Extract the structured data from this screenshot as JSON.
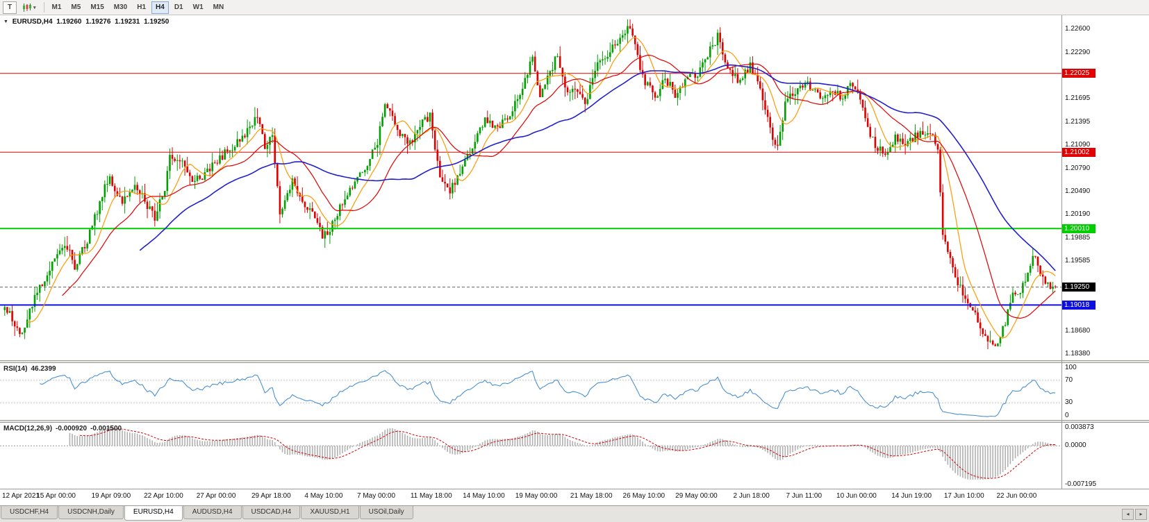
{
  "icons": {
    "collapse": "▼",
    "dropdown": "▾",
    "scroll_left": "◂",
    "scroll_right": "▸"
  },
  "toolbar": {
    "tool_button": "T",
    "timeframes": [
      "M1",
      "M5",
      "M15",
      "M30",
      "H1",
      "H4",
      "D1",
      "W1",
      "MN"
    ],
    "active_timeframe": "H4"
  },
  "chart": {
    "title": "EURUSD,H4",
    "open": "1.19260",
    "high": "1.19276",
    "low": "1.19231",
    "close": "1.19250"
  },
  "price_axis": {
    "labels": [
      "1.22600",
      "1.22290",
      "1.21995",
      "1.21695",
      "1.21395",
      "1.21090",
      "1.20790",
      "1.20490",
      "1.20190",
      "1.19885",
      "1.19585",
      "1.18680",
      "1.18380"
    ]
  },
  "hlines": [
    {
      "text": "1.22025",
      "price": 1.22025,
      "color": "#e00000",
      "width": 1
    },
    {
      "text": "1.21002",
      "price": 1.21002,
      "color": "#e00000",
      "width": 1
    },
    {
      "text": "1.20010",
      "price": 1.2001,
      "color": "#00ce00",
      "width": 2
    },
    {
      "text": "1.19018",
      "price": 1.19018,
      "color": "#0e0edf",
      "width": 2
    }
  ],
  "current_price": {
    "text": "1.19250",
    "price": 1.1925,
    "bg": "#000000"
  },
  "rsi": {
    "label": "RSI(14)",
    "value": "46.2399",
    "color": "#4a90d2",
    "scale": [
      "100",
      "70",
      "30",
      "0"
    ],
    "levels": [
      70,
      30
    ]
  },
  "macd": {
    "label": "MACD(12,26,9)",
    "value_main": "-0.000920",
    "value_signal": "-0.001500",
    "main_color": "#b0b0b0",
    "signal_color": "#d40000",
    "scale": [
      "0.003873",
      "0.0000",
      "-0.007195"
    ]
  },
  "time_axis": {
    "labels": [
      {
        "text": "12 Apr 2021",
        "i": 0
      },
      {
        "text": "15 Apr 00:00",
        "i": 21
      },
      {
        "text": "19 Apr 09:00",
        "i": 43
      },
      {
        "text": "22 Apr 10:00",
        "i": 64
      },
      {
        "text": "27 Apr 00:00",
        "i": 85
      },
      {
        "text": "29 Apr 18:00",
        "i": 107
      },
      {
        "text": "4 May 10:00",
        "i": 128
      },
      {
        "text": "7 May 00:00",
        "i": 149
      },
      {
        "text": "11 May 18:00",
        "i": 171
      },
      {
        "text": "14 May 10:00",
        "i": 192
      },
      {
        "text": "19 May 00:00",
        "i": 213
      },
      {
        "text": "21 May 18:00",
        "i": 235
      },
      {
        "text": "26 May 10:00",
        "i": 256
      },
      {
        "text": "29 May 00:00",
        "i": 277
      },
      {
        "text": "2 Jun 18:00",
        "i": 299
      },
      {
        "text": "7 Jun 11:00",
        "i": 320
      },
      {
        "text": "10 Jun 00:00",
        "i": 341
      },
      {
        "text": "14 Jun 19:00",
        "i": 363
      },
      {
        "text": "17 Jun 10:00",
        "i": 384
      },
      {
        "text": "22 Jun 00:00",
        "i": 405
      }
    ]
  },
  "tabs": {
    "items": [
      "USDCHF,H4",
      "USDCNH,Daily",
      "EURUSD,H4",
      "AUDUSD,H4",
      "USDCAD,H4",
      "XAUUSD,H1",
      "USOil,Daily"
    ],
    "active": "EURUSD,H4"
  },
  "chart_data": {
    "type": "candlestick",
    "symbol": "EURUSD",
    "timeframe": "H4",
    "candle_count": 421,
    "price_top": 1.2278,
    "price_bottom": 1.183,
    "up_color": "#00a000",
    "down_color": "#e00000",
    "last_candle": {
      "open": 1.1926,
      "high": 1.19276,
      "low": 1.19231,
      "close": 1.1925
    },
    "price_path": [
      [
        0,
        1.1902
      ],
      [
        4,
        1.1876
      ],
      [
        7,
        1.1862
      ],
      [
        12,
        1.1912
      ],
      [
        18,
        1.1948
      ],
      [
        21,
        1.1968
      ],
      [
        25,
        1.1976
      ],
      [
        28,
        1.1952
      ],
      [
        33,
        1.1985
      ],
      [
        38,
        1.2035
      ],
      [
        42,
        1.2072
      ],
      [
        45,
        1.2042
      ],
      [
        47,
        1.2034
      ],
      [
        52,
        1.2062
      ],
      [
        56,
        1.2036
      ],
      [
        60,
        1.2016
      ],
      [
        64,
        1.2055
      ],
      [
        66,
        1.2097
      ],
      [
        72,
        1.2082
      ],
      [
        76,
        1.2062
      ],
      [
        80,
        1.2072
      ],
      [
        85,
        1.2089
      ],
      [
        90,
        1.2105
      ],
      [
        96,
        1.2123
      ],
      [
        101,
        1.2148
      ],
      [
        104,
        1.2108
      ],
      [
        107,
        1.2122
      ],
      [
        110,
        1.2022
      ],
      [
        115,
        1.2063
      ],
      [
        120,
        1.2032
      ],
      [
        124,
        1.2014
      ],
      [
        127,
        1.199
      ],
      [
        131,
        1.2006
      ],
      [
        136,
        1.2042
      ],
      [
        141,
        1.2064
      ],
      [
        146,
        1.2092
      ],
      [
        149,
        1.2112
      ],
      [
        152,
        1.2166
      ],
      [
        157,
        1.2129
      ],
      [
        162,
        1.2112
      ],
      [
        166,
        1.2136
      ],
      [
        170,
        1.2147
      ],
      [
        174,
        1.2066
      ],
      [
        178,
        1.2052
      ],
      [
        183,
        1.2079
      ],
      [
        188,
        1.2112
      ],
      [
        192,
        1.2143
      ],
      [
        197,
        1.2132
      ],
      [
        203,
        1.2155
      ],
      [
        208,
        1.2192
      ],
      [
        211,
        1.2223
      ],
      [
        214,
        1.2172
      ],
      [
        218,
        1.2202
      ],
      [
        221,
        1.2228
      ],
      [
        225,
        1.2176
      ],
      [
        228,
        1.2182
      ],
      [
        232,
        1.2162
      ],
      [
        237,
        1.2216
      ],
      [
        242,
        1.2232
      ],
      [
        247,
        1.2252
      ],
      [
        250,
        1.2262
      ],
      [
        253,
        1.2222
      ],
      [
        256,
        1.2192
      ],
      [
        260,
        1.2172
      ],
      [
        264,
        1.2196
      ],
      [
        268,
        1.2176
      ],
      [
        272,
        1.2193
      ],
      [
        277,
        1.2202
      ],
      [
        281,
        1.2226
      ],
      [
        285,
        1.225
      ],
      [
        288,
        1.2215
      ],
      [
        293,
        1.2192
      ],
      [
        298,
        1.2212
      ],
      [
        302,
        1.2182
      ],
      [
        306,
        1.2128
      ],
      [
        309,
        1.2105
      ],
      [
        312,
        1.2166
      ],
      [
        316,
        1.2176
      ],
      [
        320,
        1.2191
      ],
      [
        325,
        1.2173
      ],
      [
        330,
        1.218
      ],
      [
        335,
        1.2171
      ],
      [
        339,
        1.2191
      ],
      [
        341,
        1.2176
      ],
      [
        345,
        1.2132
      ],
      [
        348,
        1.2109
      ],
      [
        352,
        1.2096
      ],
      [
        356,
        1.2121
      ],
      [
        360,
        1.2109
      ],
      [
        364,
        1.2122
      ],
      [
        368,
        1.2126
      ],
      [
        371,
        1.2118
      ],
      [
        373,
        1.2102
      ],
      [
        375,
        1.1996
      ],
      [
        378,
        1.1961
      ],
      [
        381,
        1.1931
      ],
      [
        384,
        1.1907
      ],
      [
        388,
        1.1891
      ],
      [
        391,
        1.1869
      ],
      [
        394,
        1.1853
      ],
      [
        397,
        1.1849
      ],
      [
        400,
        1.1881
      ],
      [
        403,
        1.1919
      ],
      [
        405,
        1.1914
      ],
      [
        408,
        1.1931
      ],
      [
        410,
        1.1955
      ],
      [
        412,
        1.1968
      ],
      [
        414,
        1.1941
      ],
      [
        417,
        1.1927
      ],
      [
        420,
        1.1925
      ]
    ],
    "moving_averages": [
      {
        "period": 10,
        "color": "#ff9900",
        "width": 1.2
      },
      {
        "period": 24,
        "color": "#e00000",
        "width": 1.2
      },
      {
        "period": 55,
        "color": "#2020cc",
        "width": 1.6
      }
    ],
    "rsi_period": 14,
    "macd_params": [
      12,
      26,
      9
    ],
    "macd_top": 0.003873,
    "macd_bottom": -0.007195
  }
}
